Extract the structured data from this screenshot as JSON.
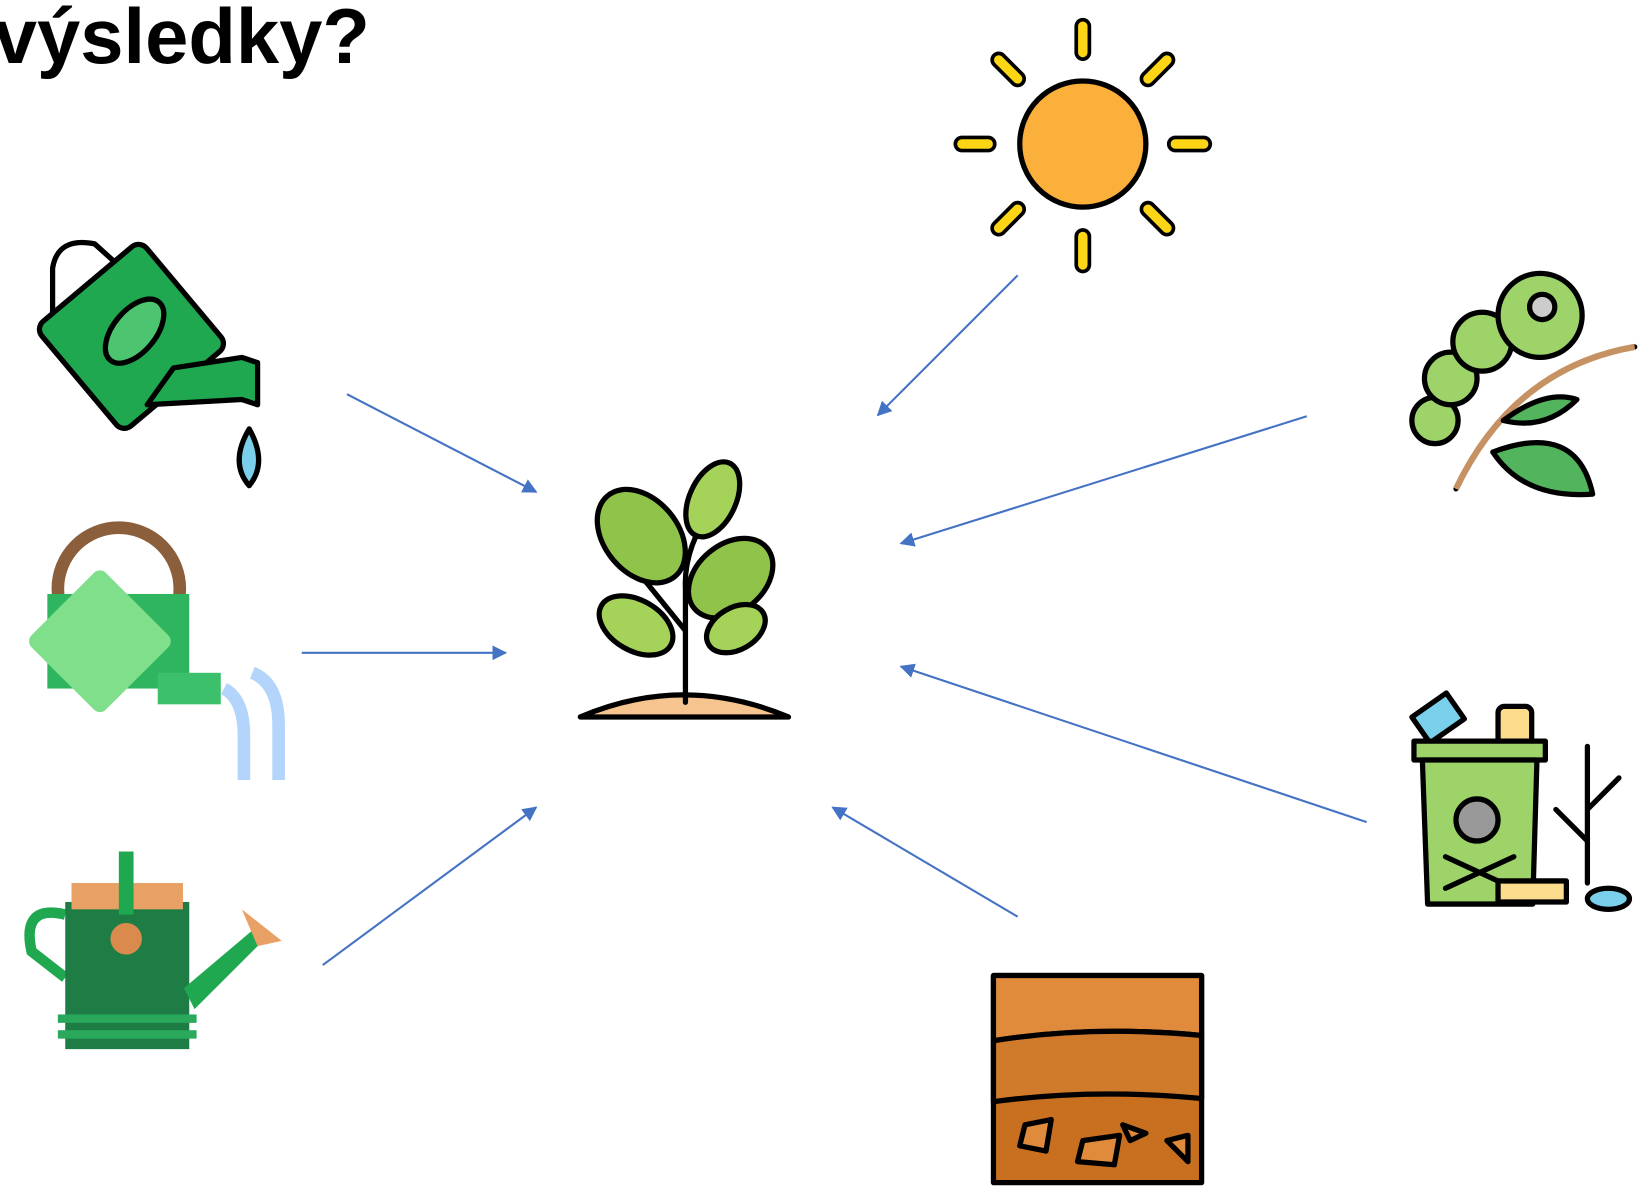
{
  "title": "výsledky?"
}
